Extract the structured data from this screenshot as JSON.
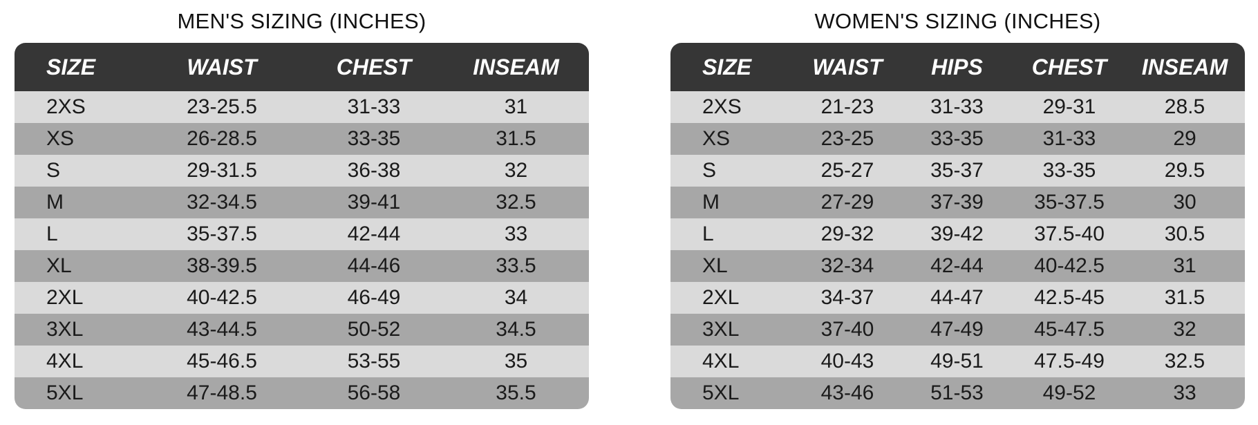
{
  "men": {
    "title": "MEN'S SIZING (INCHES)",
    "headers": [
      "SIZE",
      "WAIST",
      "CHEST",
      "INSEAM"
    ],
    "rows": [
      [
        "2XS",
        "23-25.5",
        "31-33",
        "31"
      ],
      [
        "XS",
        "26-28.5",
        "33-35",
        "31.5"
      ],
      [
        "S",
        "29-31.5",
        "36-38",
        "32"
      ],
      [
        "M",
        "32-34.5",
        "39-41",
        "32.5"
      ],
      [
        "L",
        "35-37.5",
        "42-44",
        "33"
      ],
      [
        "XL",
        "38-39.5",
        "44-46",
        "33.5"
      ],
      [
        "2XL",
        "40-42.5",
        "46-49",
        "34"
      ],
      [
        "3XL",
        "43-44.5",
        "50-52",
        "34.5"
      ],
      [
        "4XL",
        "45-46.5",
        "53-55",
        "35"
      ],
      [
        "5XL",
        "47-48.5",
        "56-58",
        "35.5"
      ]
    ]
  },
  "women": {
    "title": "WOMEN'S SIZING (INCHES)",
    "headers": [
      "SIZE",
      "WAIST",
      "HIPS",
      "CHEST",
      "INSEAM"
    ],
    "rows": [
      [
        "2XS",
        "21-23",
        "31-33",
        "29-31",
        "28.5"
      ],
      [
        "XS",
        "23-25",
        "33-35",
        "31-33",
        "29"
      ],
      [
        "S",
        "25-27",
        "35-37",
        "33-35",
        "29.5"
      ],
      [
        "M",
        "27-29",
        "37-39",
        "35-37.5",
        "30"
      ],
      [
        "L",
        "29-32",
        "39-42",
        "37.5-40",
        "30.5"
      ],
      [
        "XL",
        "32-34",
        "42-44",
        "40-42.5",
        "31"
      ],
      [
        "2XL",
        "34-37",
        "44-47",
        "42.5-45",
        "31.5"
      ],
      [
        "3XL",
        "37-40",
        "47-49",
        "45-47.5",
        "32"
      ],
      [
        "4XL",
        "40-43",
        "49-51",
        "47.5-49",
        "32.5"
      ],
      [
        "5XL",
        "43-46",
        "51-53",
        "49-52",
        "33"
      ]
    ]
  },
  "colors": {
    "header_bg": "#363636",
    "row_light": "#dadada",
    "row_dark": "#a7a7a7"
  }
}
